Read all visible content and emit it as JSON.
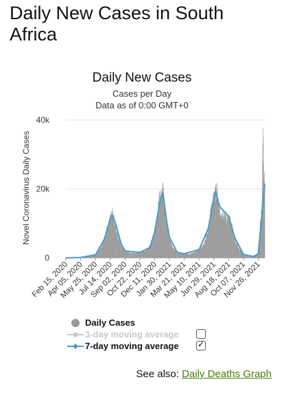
{
  "page": {
    "title": "Daily New Cases in South Africa"
  },
  "see_also": {
    "prefix": "See also: ",
    "link_label": "Daily Deaths Graph"
  },
  "legend": {
    "items": [
      {
        "label": "Daily Cases",
        "color": "#999999",
        "checked": null
      },
      {
        "label": "3-day moving average",
        "color": "#c8c8c8",
        "checked": false
      },
      {
        "label": "7-day moving average",
        "color": "#4a9bc4",
        "checked": true
      }
    ]
  },
  "chart_data": {
    "type": "bar",
    "title": "Daily New Cases",
    "subtitle": "Cases per Day",
    "subtitle2": "Data as of 0:00 GMT+0",
    "ylabel": "Novel Coronavirus Daily Cases",
    "ylim": [
      0,
      40000
    ],
    "yticks": [
      0,
      20000,
      40000
    ],
    "ytick_labels": [
      "0",
      "20k",
      "40k"
    ],
    "x_start": "2020-02-15",
    "x_end": "2021-12-18",
    "xtick_labels": [
      "Feb 15, 2020",
      "Apr 05, 2020",
      "May 25, 2020",
      "Jul 14, 2020",
      "Sep 02, 2020",
      "Oct 22, 2020",
      "Dec 11, 2020",
      "Jan 30, 2021",
      "Mar 21, 2021",
      "May 10, 2021",
      "Jun 29, 2021",
      "Aug 18, 2021",
      "Oct 07, 2021",
      "Nov 26, 2021"
    ],
    "series": [
      {
        "name": "Daily Cases",
        "color": "#999999",
        "points": [
          [
            "2020-02-15",
            0
          ],
          [
            "2020-03-15",
            50
          ],
          [
            "2020-04-05",
            150
          ],
          [
            "2020-04-25",
            300
          ],
          [
            "2020-05-15",
            700
          ],
          [
            "2020-05-25",
            900
          ],
          [
            "2020-06-10",
            3000
          ],
          [
            "2020-06-25",
            6000
          ],
          [
            "2020-07-05",
            9500
          ],
          [
            "2020-07-14",
            12500
          ],
          [
            "2020-07-20",
            13500
          ],
          [
            "2020-07-25",
            12500
          ],
          [
            "2020-08-01",
            10000
          ],
          [
            "2020-08-10",
            6000
          ],
          [
            "2020-08-20",
            3500
          ],
          [
            "2020-09-02",
            2000
          ],
          [
            "2020-09-20",
            1500
          ],
          [
            "2020-10-10",
            1500
          ],
          [
            "2020-10-22",
            1700
          ],
          [
            "2020-11-10",
            2200
          ],
          [
            "2020-11-25",
            3500
          ],
          [
            "2020-12-11",
            8000
          ],
          [
            "2020-12-20",
            13000
          ],
          [
            "2020-12-28",
            18000
          ],
          [
            "2021-01-03",
            20000
          ],
          [
            "2021-01-08",
            21500
          ],
          [
            "2021-01-13",
            17000
          ],
          [
            "2021-01-20",
            11000
          ],
          [
            "2021-01-30",
            6000
          ],
          [
            "2021-02-10",
            3000
          ],
          [
            "2021-02-25",
            1600
          ],
          [
            "2021-03-21",
            1200
          ],
          [
            "2021-04-10",
            1200
          ],
          [
            "2021-05-10",
            2500
          ],
          [
            "2021-05-25",
            4000
          ],
          [
            "2021-06-10",
            9000
          ],
          [
            "2021-06-20",
            15000
          ],
          [
            "2021-06-29",
            19000
          ],
          [
            "2021-07-05",
            21000
          ],
          [
            "2021-07-10",
            20000
          ],
          [
            "2021-07-17",
            15000
          ],
          [
            "2021-07-25",
            13000
          ],
          [
            "2021-08-05",
            12500
          ],
          [
            "2021-08-18",
            12000
          ],
          [
            "2021-08-28",
            10000
          ],
          [
            "2021-09-07",
            6000
          ],
          [
            "2021-09-20",
            3000
          ],
          [
            "2021-10-07",
            1000
          ],
          [
            "2021-10-25",
            400
          ],
          [
            "2021-11-10",
            400
          ],
          [
            "2021-11-26",
            1500
          ],
          [
            "2021-12-03",
            11000
          ],
          [
            "2021-12-08",
            16000
          ],
          [
            "2021-12-12",
            37800
          ],
          [
            "2021-12-15",
            23000
          ],
          [
            "2021-12-18",
            22000
          ]
        ]
      },
      {
        "name": "7-day moving average",
        "color": "#4a9bc4",
        "points": [
          [
            "2020-02-15",
            0
          ],
          [
            "2020-04-05",
            100
          ],
          [
            "2020-05-25",
            900
          ],
          [
            "2020-06-25",
            5500
          ],
          [
            "2020-07-14",
            11500
          ],
          [
            "2020-07-20",
            12500
          ],
          [
            "2020-08-01",
            10000
          ],
          [
            "2020-08-20",
            4000
          ],
          [
            "2020-09-02",
            2000
          ],
          [
            "2020-10-22",
            1600
          ],
          [
            "2020-11-25",
            3000
          ],
          [
            "2020-12-11",
            7500
          ],
          [
            "2020-12-28",
            16000
          ],
          [
            "2021-01-08",
            19000
          ],
          [
            "2021-01-20",
            11000
          ],
          [
            "2021-01-30",
            6000
          ],
          [
            "2021-02-25",
            1600
          ],
          [
            "2021-03-21",
            1200
          ],
          [
            "2021-05-10",
            2400
          ],
          [
            "2021-06-10",
            8500
          ],
          [
            "2021-06-29",
            17000
          ],
          [
            "2021-07-05",
            19500
          ],
          [
            "2021-07-17",
            15000
          ],
          [
            "2021-08-18",
            12000
          ],
          [
            "2021-09-07",
            6000
          ],
          [
            "2021-10-07",
            1000
          ],
          [
            "2021-11-10",
            400
          ],
          [
            "2021-11-26",
            1200
          ],
          [
            "2021-12-08",
            12500
          ],
          [
            "2021-12-18",
            21500
          ]
        ]
      }
    ]
  }
}
